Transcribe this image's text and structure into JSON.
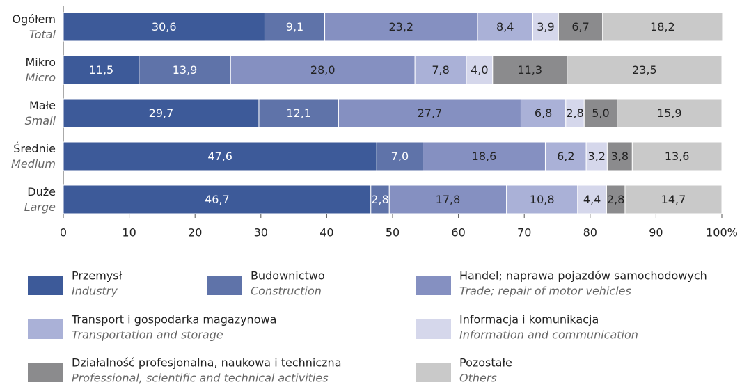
{
  "chart_data": {
    "type": "stacked-barh",
    "categories": [
      "Ogółem",
      "Mikro",
      "Małe",
      "Średnie",
      "Duże"
    ],
    "categories_en": [
      "Total",
      "Micro",
      "Small",
      "Medium",
      "Large"
    ],
    "series": [
      {
        "name": "Przemysł",
        "name_en": "Industry",
        "color": "#3d5a99",
        "label_color": "#ffffff",
        "values": [
          30.6,
          11.5,
          29.7,
          47.6,
          46.7
        ],
        "value_labels": [
          "30,6",
          "11,5",
          "29,7",
          "47,6",
          "46,7"
        ]
      },
      {
        "name": "Budownictwo",
        "name_en": "Construction",
        "color": "#5f73a9",
        "label_color": "#ffffff",
        "values": [
          9.1,
          13.9,
          12.1,
          7.0,
          2.8
        ],
        "value_labels": [
          "9,1",
          "13,9",
          "12,1",
          "7,0",
          "2,8"
        ]
      },
      {
        "name": "Handel; naprawa pojazdów samochodowych",
        "name_en": "Trade; repair of motor vehicles",
        "color": "#8590c1",
        "label_color": "#222222",
        "values": [
          23.2,
          28.0,
          27.7,
          18.6,
          17.8
        ],
        "value_labels": [
          "23,2",
          "28,0",
          "27,7",
          "18,6",
          "17,8"
        ]
      },
      {
        "name": "Transport i gospodarka magazynowa",
        "name_en": "Transportation and storage",
        "color": "#aab1d7",
        "label_color": "#222222",
        "values": [
          8.4,
          7.8,
          6.8,
          6.2,
          10.8
        ],
        "value_labels": [
          "8,4",
          "7,8",
          "6,8",
          "6,2",
          "10,8"
        ]
      },
      {
        "name": "Informacja i komunikacja",
        "name_en": "Information and communication",
        "color": "#d5d7eb",
        "label_color": "#222222",
        "values": [
          3.9,
          4.0,
          2.8,
          3.2,
          4.4
        ],
        "value_labels": [
          "3,9",
          "4,0",
          "2,8",
          "3,2",
          "4,4"
        ]
      },
      {
        "name": "Działalność profesjonalna, naukowa i techniczna",
        "name_en": "Professional, scientific and technical activities",
        "color": "#8b8b8d",
        "label_color": "#222222",
        "values": [
          6.7,
          11.3,
          5.0,
          3.8,
          2.8
        ],
        "value_labels": [
          "6,7",
          "11,3",
          "5,0",
          "3,8",
          "2,8"
        ]
      },
      {
        "name": "Pozostałe",
        "name_en": "Others",
        "color": "#c9c9c9",
        "label_color": "#222222",
        "values": [
          18.2,
          23.5,
          15.9,
          13.6,
          14.7
        ],
        "value_labels": [
          "18,2",
          "23,5",
          "15,9",
          "13,6",
          "14,7"
        ]
      }
    ],
    "xlim": [
      0,
      100
    ],
    "xticks": [
      0,
      10,
      20,
      30,
      40,
      50,
      60,
      70,
      80,
      90,
      {
        "value": 100,
        "label": "100%"
      }
    ]
  }
}
